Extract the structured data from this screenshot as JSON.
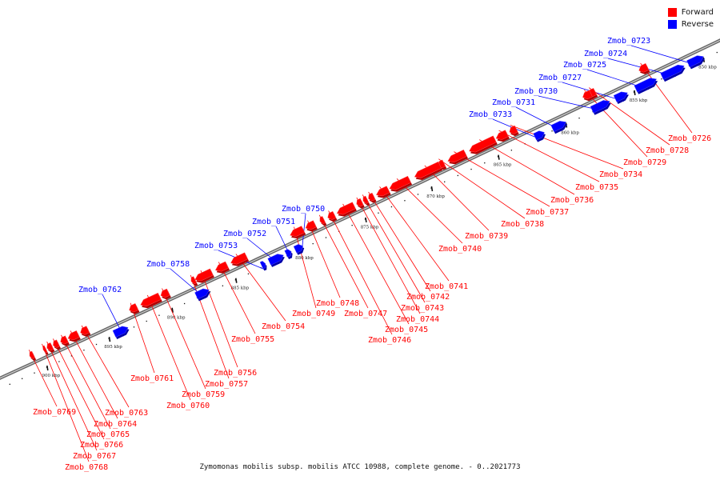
{
  "legend": [
    {
      "label": "Forward",
      "color": "#ff0000"
    },
    {
      "label": "Reverse",
      "color": "#0000ff"
    }
  ],
  "caption": "Zymomonas mobilis subsp. mobilis ATCC 10988, complete genome. - 0..2021773",
  "ticks": [
    {
      "label": "850 kbp",
      "pos": 850
    },
    {
      "label": "855 kbp",
      "pos": 855
    },
    {
      "label": "860 kbp",
      "pos": 860
    },
    {
      "label": "865 kbp",
      "pos": 865
    },
    {
      "label": "870 kbp",
      "pos": 870
    },
    {
      "label": "875 kbp",
      "pos": 875
    },
    {
      "label": "880 kbp",
      "pos": 880
    },
    {
      "label": "885 kbp",
      "pos": 885
    },
    {
      "label": "890 kbp",
      "pos": 890
    },
    {
      "label": "895 kbp",
      "pos": 895
    },
    {
      "label": "900 kbp",
      "pos": 900
    }
  ],
  "genes": [
    {
      "name": "Zmob_0723",
      "strand": "reverse",
      "start": 849.9,
      "end": 851.0
    },
    {
      "name": "Zmob_0724",
      "strand": "reverse",
      "start": 851.3,
      "end": 852.9
    },
    {
      "name": "Zmob_0725",
      "strand": "reverse",
      "start": 853.3,
      "end": 854.8
    },
    {
      "name": "Zmob_0726",
      "strand": "forward",
      "start": 853.5,
      "end": 854.1
    },
    {
      "name": "Zmob_0727",
      "strand": "reverse",
      "start": 855.4,
      "end": 856.3
    },
    {
      "name": "Zmob_0728",
      "strand": "forward",
      "start": 857.3,
      "end": 857.8
    },
    {
      "name": "Zmob_0729",
      "strand": "forward",
      "start": 857.6,
      "end": 858.2
    },
    {
      "name": "Zmob_0730",
      "strand": "reverse",
      "start": 856.7,
      "end": 858.0
    },
    {
      "name": "Zmob_0731",
      "strand": "reverse",
      "start": 859.9,
      "end": 860.9
    },
    {
      "name": "Zmob_0733",
      "strand": "reverse",
      "start": 861.5,
      "end": 862.2
    },
    {
      "name": "Zmob_0734",
      "strand": "forward",
      "start": 863.1,
      "end": 863.6
    },
    {
      "name": "Zmob_0735",
      "strand": "forward",
      "start": 863.8,
      "end": 864.6
    },
    {
      "name": "Zmob_0736",
      "strand": "forward",
      "start": 864.7,
      "end": 866.6
    },
    {
      "name": "Zmob_0737",
      "strand": "forward",
      "start": 866.9,
      "end": 868.2
    },
    {
      "name": "Zmob_0738",
      "strand": "forward",
      "start": 868.5,
      "end": 868.9
    },
    {
      "name": "Zmob_0739",
      "strand": "forward",
      "start": 868.8,
      "end": 870.7
    },
    {
      "name": "Zmob_0740",
      "strand": "forward",
      "start": 871.1,
      "end": 872.6
    },
    {
      "name": "Zmob_0741",
      "strand": "forward",
      "start": 872.7,
      "end": 873.6
    },
    {
      "name": "Zmob_0742",
      "strand": "forward",
      "start": 873.8,
      "end": 874.2
    },
    {
      "name": "Zmob_0743",
      "strand": "forward",
      "start": 874.3,
      "end": 874.6
    },
    {
      "name": "Zmob_0744",
      "strand": "forward",
      "start": 874.7,
      "end": 875.1
    },
    {
      "name": "Zmob_0745",
      "strand": "forward",
      "start": 875.3,
      "end": 876.6
    },
    {
      "name": "Zmob_0746",
      "strand": "forward",
      "start": 876.8,
      "end": 877.3
    },
    {
      "name": "Zmob_0747",
      "strand": "forward",
      "start": 877.6,
      "end": 877.9
    },
    {
      "name": "Zmob_0748",
      "strand": "forward",
      "start": 878.3,
      "end": 879.0
    },
    {
      "name": "Zmob_0749",
      "strand": "forward",
      "start": 879.2,
      "end": 880.2
    },
    {
      "name": "Zmob_0750",
      "strand": "reverse",
      "start": 879.7,
      "end": 880.3
    },
    {
      "name": "Zmob_0751",
      "strand": "reverse",
      "start": 880.6,
      "end": 881.0
    },
    {
      "name": "Zmob_0752",
      "strand": "reverse",
      "start": 881.2,
      "end": 882.3
    },
    {
      "name": "Zmob_0753",
      "strand": "reverse",
      "start": 882.6,
      "end": 882.9
    },
    {
      "name": "Zmob_0754",
      "strand": "forward",
      "start": 883.6,
      "end": 884.8
    },
    {
      "name": "Zmob_0755",
      "strand": "forward",
      "start": 885.1,
      "end": 886.0
    },
    {
      "name": "Zmob_0756",
      "strand": "forward",
      "start": 886.3,
      "end": 887.6
    },
    {
      "name": "Zmob_0757",
      "strand": "forward",
      "start": 887.6,
      "end": 887.9
    },
    {
      "name": "Zmob_0758",
      "strand": "reverse",
      "start": 887.0,
      "end": 888.0
    },
    {
      "name": "Zmob_0759",
      "strand": "forward",
      "start": 889.7,
      "end": 890.3
    },
    {
      "name": "Zmob_0760",
      "strand": "forward",
      "start": 890.4,
      "end": 891.9
    },
    {
      "name": "Zmob_0761",
      "strand": "forward",
      "start": 892.2,
      "end": 892.8
    },
    {
      "name": "Zmob_0762",
      "strand": "reverse",
      "start": 893.4,
      "end": 894.5
    },
    {
      "name": "Zmob_0763",
      "strand": "forward",
      "start": 896.1,
      "end": 896.7
    },
    {
      "name": "Zmob_0764",
      "strand": "forward",
      "start": 896.9,
      "end": 897.7
    },
    {
      "name": "Zmob_0765",
      "strand": "forward",
      "start": 897.8,
      "end": 898.3
    },
    {
      "name": "Zmob_0766",
      "strand": "forward",
      "start": 898.5,
      "end": 898.9
    },
    {
      "name": "Zmob_0767",
      "strand": "forward",
      "start": 899.0,
      "end": 899.4
    },
    {
      "name": "Zmob_0768",
      "strand": "forward",
      "start": 899.5,
      "end": 899.7
    },
    {
      "name": "Zmob_0769",
      "strand": "forward",
      "start": 900.5,
      "end": 900.8
    }
  ]
}
